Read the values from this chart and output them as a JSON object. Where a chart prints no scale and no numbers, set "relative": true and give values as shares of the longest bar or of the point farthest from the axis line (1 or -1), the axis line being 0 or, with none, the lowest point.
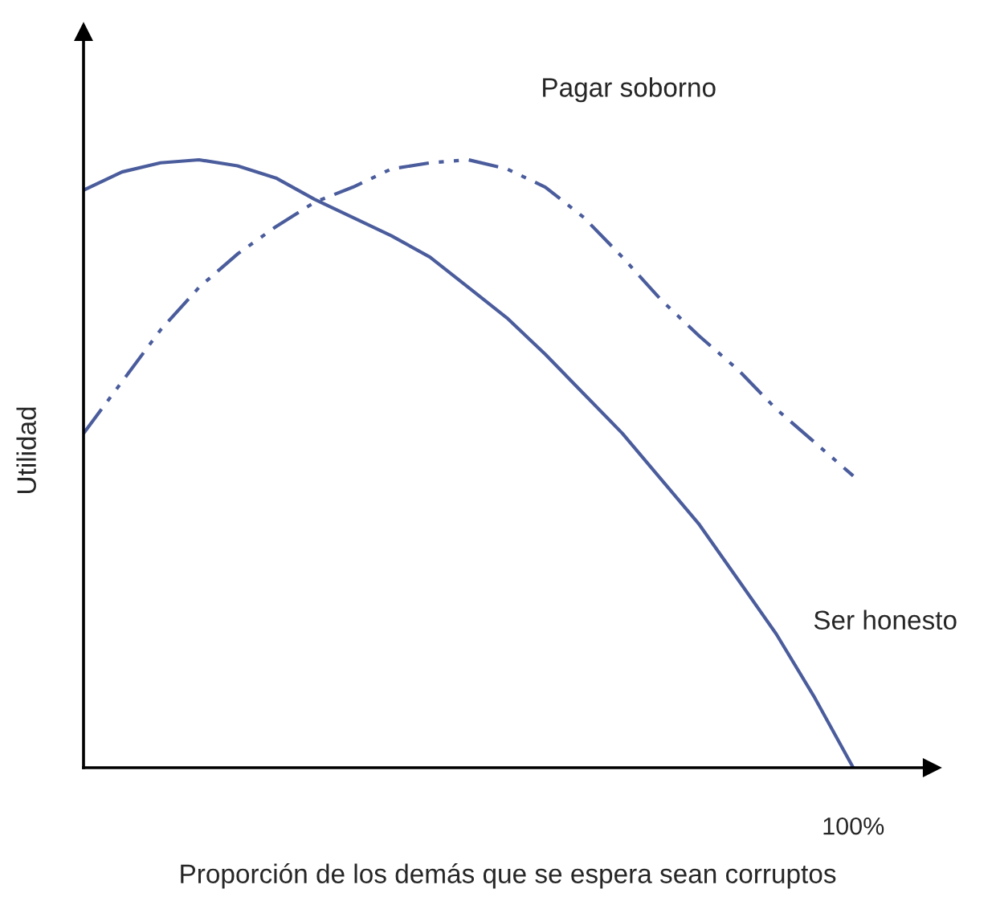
{
  "chart_data": {
    "type": "line",
    "relative": true,
    "xlabel": "Proporción de los demás que se espera sean corruptos",
    "ylabel": "Utilidad",
    "annotations": [
      "100%"
    ],
    "categories": [
      null,
      null,
      null,
      null,
      null,
      null,
      null,
      null,
      null,
      null,
      null,
      null,
      null,
      null,
      null,
      null,
      null,
      null,
      null,
      null,
      null
    ],
    "series": [
      {
        "name": "Pagar soborno",
        "color": "#4a5c9c",
        "line_style": "dashed",
        "values": [
          0.55,
          0.635,
          0.72,
          0.79,
          0.845,
          0.89,
          0.93,
          0.955,
          0.985,
          0.995,
          1.0,
          0.985,
          0.955,
          0.905,
          0.84,
          0.77,
          0.71,
          0.655,
          0.59,
          0.535,
          0.48
        ]
      },
      {
        "name": "Ser honesto",
        "color": "#4a5c9c",
        "line_style": "solid",
        "values": [
          0.95,
          0.98,
          0.995,
          1.0,
          0.99,
          0.97,
          0.935,
          0.905,
          0.875,
          0.84,
          0.79,
          0.74,
          0.68,
          0.615,
          0.55,
          0.475,
          0.4,
          0.31,
          0.22,
          0.115,
          0.0
        ]
      }
    ]
  }
}
